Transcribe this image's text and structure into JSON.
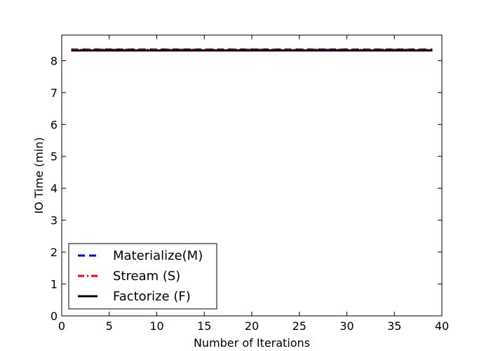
{
  "chart_data": {
    "type": "line",
    "title": "",
    "xlabel": "Number of Iterations",
    "ylabel": "IO Time (min)",
    "xlim": [
      0,
      40
    ],
    "ylim": [
      0,
      8.8
    ],
    "xticks": [
      0,
      5,
      10,
      15,
      20,
      25,
      30,
      35,
      40
    ],
    "yticks": [
      0,
      1,
      2,
      3,
      4,
      5,
      6,
      7,
      8
    ],
    "grid": false,
    "legend_position": "lower-left",
    "x": [
      1,
      39
    ],
    "series": [
      {
        "name": "Materialize(M)",
        "values": [
          8.35,
          8.35
        ],
        "color": "#0000ff",
        "style": "dashed"
      },
      {
        "name": "Stream (S)",
        "values": [
          8.34,
          8.34
        ],
        "color": "#ff0000",
        "style": "dashdot"
      },
      {
        "name": "Factorize (F)",
        "values": [
          8.32,
          8.32
        ],
        "color": "#000000",
        "style": "solid"
      }
    ]
  }
}
